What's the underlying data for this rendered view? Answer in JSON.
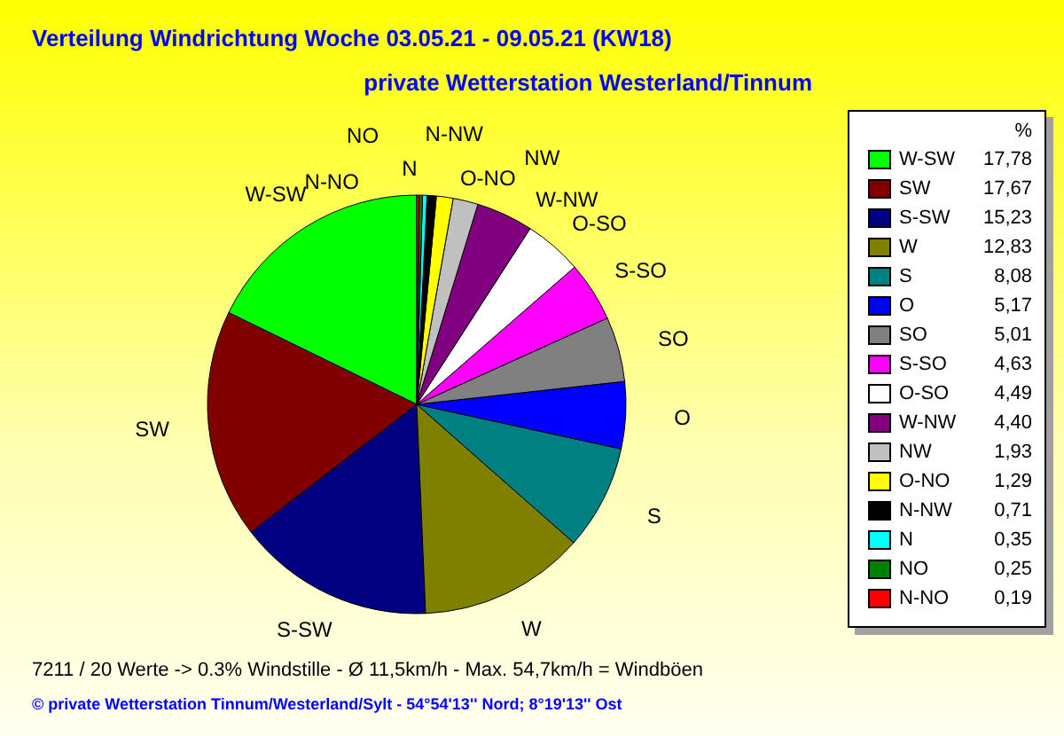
{
  "chart_data": {
    "type": "pie",
    "title": "Verteilung Windrichtung   Woche 03.05.21 - 09.05.21 (KW18)",
    "subtitle": "private Wetterstation Westerland/Tinnum",
    "legend_title": "%",
    "categories": [
      "W-SW",
      "SW",
      "S-SW",
      "W",
      "S",
      "O",
      "SO",
      "S-SO",
      "O-SO",
      "W-NW",
      "NW",
      "O-NO",
      "N-NW",
      "N",
      "NO",
      "N-NO"
    ],
    "values": [
      17.78,
      17.67,
      15.23,
      12.83,
      8.08,
      5.17,
      5.01,
      4.63,
      4.49,
      4.4,
      1.93,
      1.29,
      0.71,
      0.35,
      0.25,
      0.19
    ],
    "colors": [
      "#00ff00",
      "#800000",
      "#000080",
      "#808000",
      "#008080",
      "#0000ff",
      "#808080",
      "#ff00ff",
      "#ffffff",
      "#800080",
      "#c0c0c0",
      "#ffff00",
      "#000000",
      "#00ffff",
      "#008000",
      "#ff0000"
    ],
    "value_labels": [
      "17,78",
      "17,67",
      "15,23",
      "12,83",
      "8,08",
      "5,17",
      "5,01",
      "4,63",
      "4,49",
      "4,40",
      "1,93",
      "1,29",
      "0,71",
      "0,35",
      "0,25",
      "0,19"
    ],
    "legend": "right",
    "annotations": [
      "7211 / 20 Werte  -> 0.3% Windstille   -   Ø 11,5km/h  -  Max. 54,7km/h = Windböen",
      "© private Wetterstation Tinnum/Westerland/Sylt  -  54°54'13'' Nord; 8°19'13'' Ost"
    ]
  }
}
